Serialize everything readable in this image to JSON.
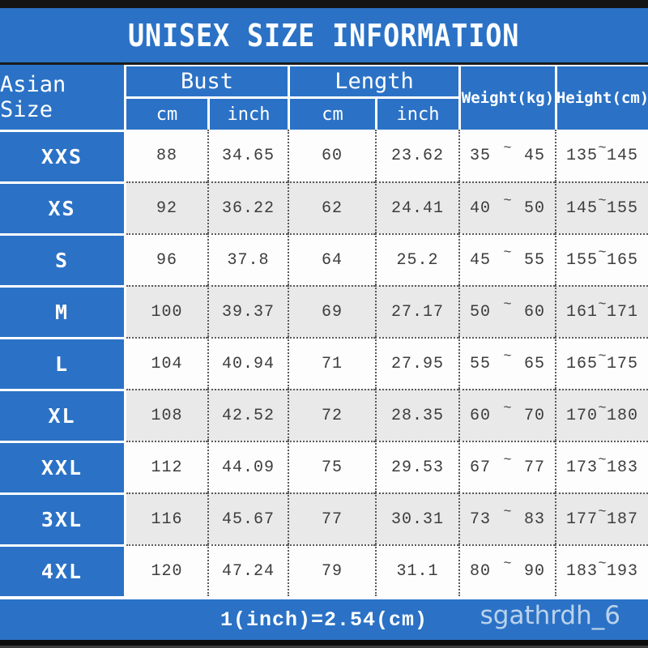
{
  "title": "UNISEX SIZE INFORMATION",
  "tilde": "~",
  "header": {
    "corner": "Asian Size",
    "bust": "Bust",
    "length": "Length",
    "cm": "cm",
    "inch": "inch",
    "weight": "Weight(kg)",
    "height": "Height(cm)"
  },
  "rows": [
    {
      "size": "XXS",
      "bust_cm": "88",
      "bust_inch": "34.65",
      "length_cm": "60",
      "length_inch": "23.62",
      "weight_min": "35",
      "weight_max": "45",
      "height_min": "135",
      "height_max": "145"
    },
    {
      "size": "XS",
      "bust_cm": "92",
      "bust_inch": "36.22",
      "length_cm": "62",
      "length_inch": "24.41",
      "weight_min": "40",
      "weight_max": "50",
      "height_min": "145",
      "height_max": "155"
    },
    {
      "size": "S",
      "bust_cm": "96",
      "bust_inch": "37.8",
      "length_cm": "64",
      "length_inch": "25.2",
      "weight_min": "45",
      "weight_max": "55",
      "height_min": "155",
      "height_max": "165"
    },
    {
      "size": "M",
      "bust_cm": "100",
      "bust_inch": "39.37",
      "length_cm": "69",
      "length_inch": "27.17",
      "weight_min": "50",
      "weight_max": "60",
      "height_min": "161",
      "height_max": "171"
    },
    {
      "size": "L",
      "bust_cm": "104",
      "bust_inch": "40.94",
      "length_cm": "71",
      "length_inch": "27.95",
      "weight_min": "55",
      "weight_max": "65",
      "height_min": "165",
      "height_max": "175"
    },
    {
      "size": "XL",
      "bust_cm": "108",
      "bust_inch": "42.52",
      "length_cm": "72",
      "length_inch": "28.35",
      "weight_min": "60",
      "weight_max": "70",
      "height_min": "170",
      "height_max": "180"
    },
    {
      "size": "XXL",
      "bust_cm": "112",
      "bust_inch": "44.09",
      "length_cm": "75",
      "length_inch": "29.53",
      "weight_min": "67",
      "weight_max": "77",
      "height_min": "173",
      "height_max": "183"
    },
    {
      "size": "3XL",
      "bust_cm": "116",
      "bust_inch": "45.67",
      "length_cm": "77",
      "length_inch": "30.31",
      "weight_min": "73",
      "weight_max": "83",
      "height_min": "177",
      "height_max": "187"
    },
    {
      "size": "4XL",
      "bust_cm": "120",
      "bust_inch": "47.24",
      "length_cm": "79",
      "length_inch": "31.1",
      "weight_min": "80",
      "weight_max": "90",
      "height_min": "183",
      "height_max": "193"
    }
  ],
  "footer": {
    "formula": "1(inch)=2.54(cm)",
    "watermark": "sgathrdh_6"
  },
  "colors": {
    "accent_blue": "#2b72c6",
    "row_alt_gray": "#e9e9e9",
    "row_white": "#fdfdfd",
    "text_dark": "#3d3d3d",
    "bar_black": "#141414"
  },
  "chart_data": {
    "type": "table",
    "title": "UNISEX SIZE INFORMATION",
    "columns": [
      "Asian Size",
      "Bust (cm)",
      "Bust (inch)",
      "Length (cm)",
      "Length (inch)",
      "Weight (kg)",
      "Height (cm)"
    ],
    "rows": [
      [
        "XXS",
        88,
        34.65,
        60,
        23.62,
        "35~45",
        "135~145"
      ],
      [
        "XS",
        92,
        36.22,
        62,
        24.41,
        "40~50",
        "145~155"
      ],
      [
        "S",
        96,
        37.8,
        64,
        25.2,
        "45~55",
        "155~165"
      ],
      [
        "M",
        100,
        39.37,
        69,
        27.17,
        "50~60",
        "161~171"
      ],
      [
        "L",
        104,
        40.94,
        71,
        27.95,
        "55~65",
        "165~175"
      ],
      [
        "XL",
        108,
        42.52,
        72,
        28.35,
        "60~70",
        "170~180"
      ],
      [
        "XXL",
        112,
        44.09,
        75,
        29.53,
        "67~77",
        "173~183"
      ],
      [
        "3XL",
        116,
        45.67,
        77,
        30.31,
        "73~83",
        "177~187"
      ],
      [
        "4XL",
        120,
        47.24,
        79,
        31.1,
        "80~90",
        "183~193"
      ]
    ],
    "note": "1(inch)=2.54(cm)"
  }
}
